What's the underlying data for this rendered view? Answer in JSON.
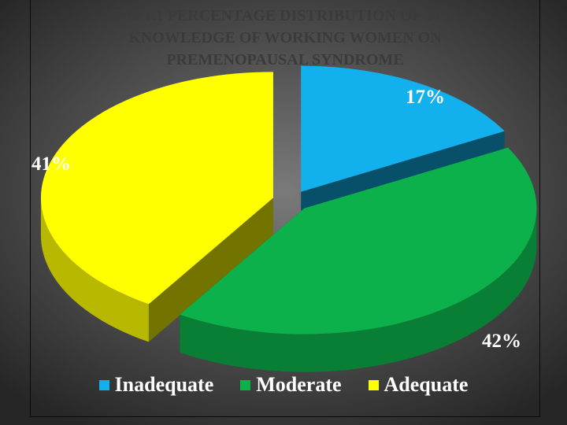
{
  "chart_data": {
    "type": "pie",
    "style": "3d-exploded",
    "title_lines": [
      "FIG 1.1  PERCENTAGE DISTRIBUTION  OF THE",
      "KNOWLEDGE OF  WORKING WOMEN ON",
      "PREMENOPAUSAL SYNDROME"
    ],
    "categories": [
      "Inadequate",
      "Moderate",
      "Adequate"
    ],
    "values": [
      17,
      42,
      41
    ],
    "labels": [
      "17%",
      "42%",
      "41%"
    ],
    "colors": [
      "#12b0ec",
      "#0db14b",
      "#ffff00"
    ],
    "legend_position": "bottom"
  }
}
